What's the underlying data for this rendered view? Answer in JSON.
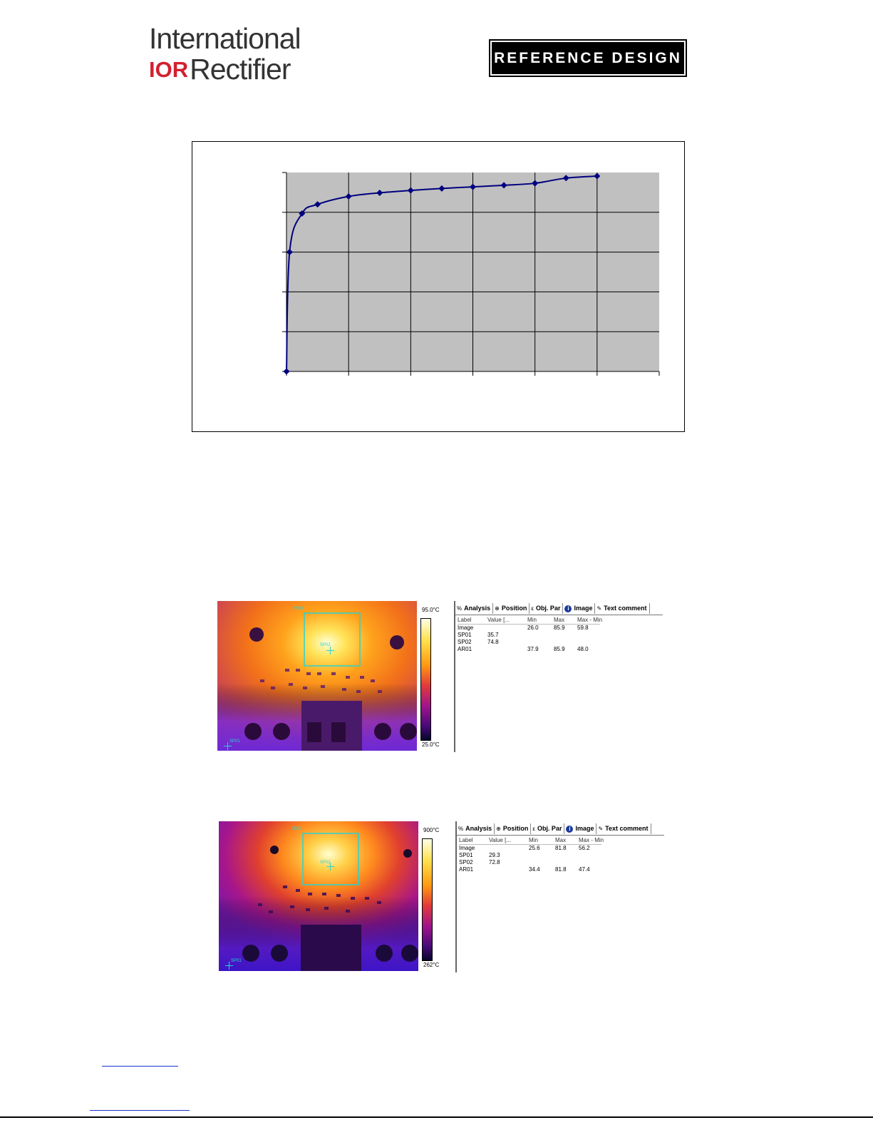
{
  "header": {
    "logo_line1": "International",
    "logo_mark": "IOR",
    "logo_line2": "Rectifier",
    "badge": "REFERENCE DESIGN"
  },
  "chart_data": {
    "type": "line",
    "title": "",
    "xlabel": "",
    "ylabel": "",
    "x_gridlines": 6,
    "y_gridlines": 5,
    "grid": true,
    "tick_labels_visible": false,
    "series": [
      {
        "x": [
          0,
          0.05,
          0.25,
          0.5,
          1,
          1.5,
          2,
          2.5,
          3,
          3.5,
          4,
          4.5,
          5
        ],
        "y": [
          0,
          3.0,
          3.97,
          4.2,
          4.4,
          4.49,
          4.55,
          4.6,
          4.64,
          4.68,
          4.73,
          4.86,
          4.91
        ]
      }
    ],
    "xlim": [
      0,
      6
    ],
    "ylim": [
      0,
      5
    ],
    "colors": {
      "line": "#00007f",
      "plot_area": "#c0c0c0",
      "grid": "#000000"
    }
  },
  "thermal_1": {
    "scale_max": "95.0°C",
    "scale_min": "25.0°C",
    "marker_sp01": "SP01",
    "marker_sp02": "SP02",
    "marker_ar01": "AR01",
    "tabs": [
      {
        "icon": "analysis-icon",
        "label": "Analysis"
      },
      {
        "icon": "position-icon",
        "label": "Position"
      },
      {
        "icon": "obj-par-icon",
        "label": "Obj. Par"
      },
      {
        "icon": "info-icon",
        "label": "Image"
      },
      {
        "icon": "text-comment-icon",
        "label": "Text comment"
      }
    ],
    "columns": [
      "Label",
      "Value [...",
      "Min",
      "Max",
      "Max - Min"
    ],
    "rows": [
      {
        "label": "Image",
        "value": "",
        "min": "26.0",
        "max": "85.9",
        "diff": "59.8"
      },
      {
        "label": "SP01",
        "value": "35.7",
        "min": "",
        "max": "",
        "diff": ""
      },
      {
        "label": "SP02",
        "value": "74.8",
        "min": "",
        "max": "",
        "diff": ""
      },
      {
        "label": "AR01",
        "value": "",
        "min": "37.9",
        "max": "85.9",
        "diff": "48.0"
      }
    ]
  },
  "thermal_2": {
    "scale_max": "900°C",
    "scale_min": "262°C",
    "marker_sp01": "SP01",
    "marker_sp02": "SP02",
    "marker_ar01": "AR01",
    "tabs": [
      {
        "icon": "analysis-icon",
        "label": "Analysis"
      },
      {
        "icon": "position-icon",
        "label": "Position"
      },
      {
        "icon": "obj-par-icon",
        "label": "Obj. Par"
      },
      {
        "icon": "info-icon",
        "label": "Image"
      },
      {
        "icon": "text-comment-icon",
        "label": "Text comment"
      }
    ],
    "columns": [
      "Label",
      "Value [...",
      "Min",
      "Max",
      "Max - Min"
    ],
    "rows": [
      {
        "label": "Image",
        "value": "",
        "min": "25.6",
        "max": "81.8",
        "diff": "56.2"
      },
      {
        "label": "SP01",
        "value": "29.3",
        "min": "",
        "max": "",
        "diff": ""
      },
      {
        "label": "SP02",
        "value": "72.8",
        "min": "",
        "max": "",
        "diff": ""
      },
      {
        "label": "AR01",
        "value": "",
        "min": "34.4",
        "max": "81.8",
        "diff": "47.4"
      }
    ]
  },
  "tab_icon_glyphs": {
    "analysis-icon": "%",
    "position-icon": "⊕",
    "obj-par-icon": "ε",
    "info-icon": "i",
    "text-comment-icon": "✎"
  }
}
